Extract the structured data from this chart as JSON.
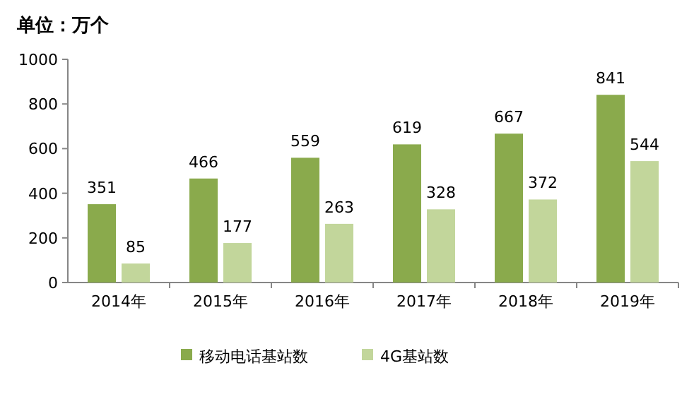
{
  "chart_data": {
    "type": "bar",
    "title": "单位：万个",
    "categories": [
      "2014年",
      "2015年",
      "2016年",
      "2017年",
      "2018年",
      "2019年"
    ],
    "series": [
      {
        "name": "移动电话基站数",
        "color": "#8aaa4c",
        "values": [
          351,
          466,
          559,
          619,
          667,
          841
        ]
      },
      {
        "name": "4G基站数",
        "color": "#c2d69b",
        "values": [
          85,
          177,
          263,
          328,
          372,
          544
        ]
      }
    ],
    "ylim": [
      0,
      1000
    ],
    "yticks": [
      0,
      200,
      400,
      600,
      800,
      1000
    ],
    "data_labels": true,
    "grid": false,
    "legend": "bottom"
  }
}
